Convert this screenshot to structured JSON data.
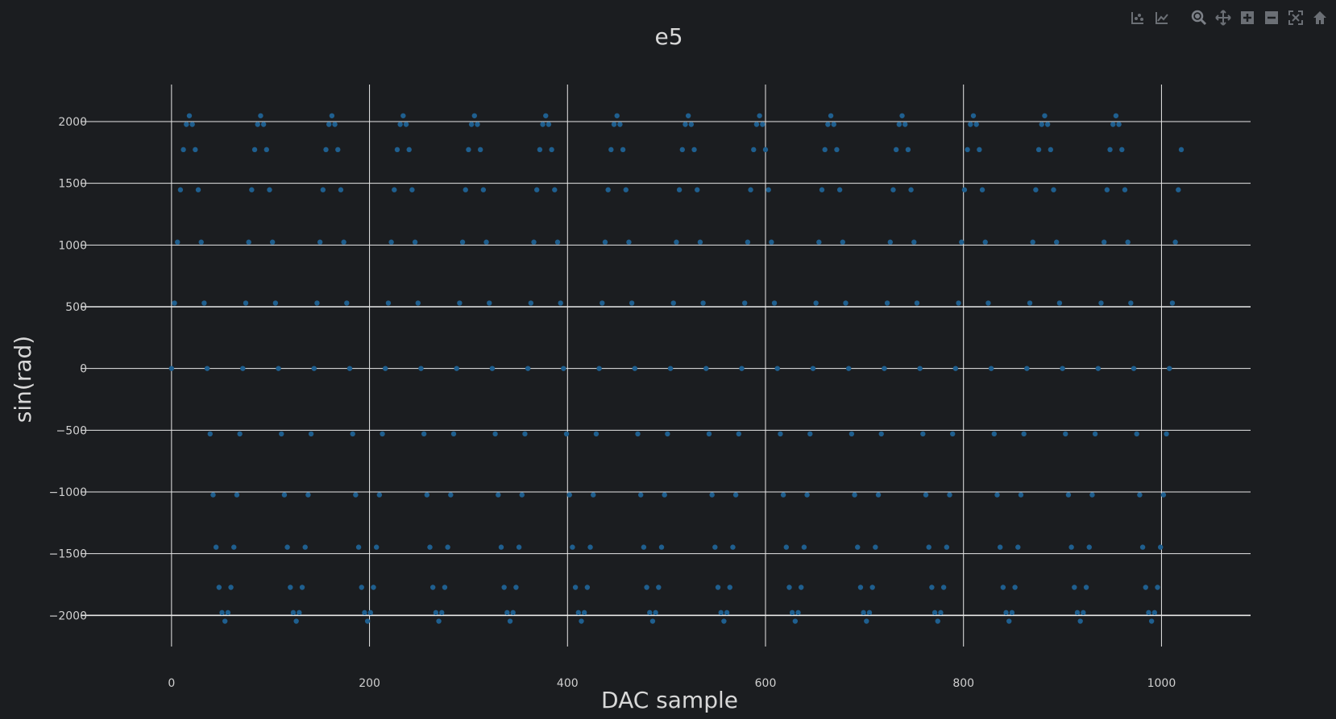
{
  "chart_data": {
    "type": "scatter",
    "title": "e5",
    "xlabel": "DAC sample",
    "ylabel": "sin(rad)",
    "xlim": [
      -100,
      1090
    ],
    "ylim": [
      -2200,
      2300
    ],
    "x_ticks": [
      0,
      200,
      400,
      600,
      800,
      1000
    ],
    "x_tick_labels": [
      "0",
      "200",
      "400",
      "600",
      "800",
      "1000"
    ],
    "y_ticks": [
      -2000,
      -1500,
      -1000,
      -500,
      0,
      500,
      1000,
      1500,
      2000
    ],
    "y_tick_labels": [
      "−2000",
      "−1500",
      "−1000",
      "−500",
      "0",
      "500",
      "1000",
      "1500",
      "2000"
    ],
    "grid": true,
    "legend": "none",
    "series": [
      {
        "marker_color": "#1f5f8f",
        "sample_step": 3,
        "period_samples": 72,
        "amplitude": 2047,
        "x_start": 0,
        "x_end": 1022,
        "formula": "2047*sin(2*pi*x/72)"
      }
    ]
  },
  "colors": {
    "background": "#1b1d20",
    "grid": "#e8e8e8",
    "text": "#d8d8d8",
    "tick_text": "#cfcfcf",
    "modebar_icon": "#6b6f75"
  },
  "modebar": [
    {
      "name": "compare-data-icon",
      "label": "Compare data on hover"
    },
    {
      "name": "closest-data-icon",
      "label": "Show closest data on hover"
    },
    {
      "name": "zoom-icon",
      "label": "Zoom"
    },
    {
      "name": "pan-icon",
      "label": "Pan"
    },
    {
      "name": "zoom-in-icon",
      "label": "Zoom in"
    },
    {
      "name": "zoom-out-icon",
      "label": "Zoom out"
    },
    {
      "name": "autoscale-icon",
      "label": "Autoscale"
    },
    {
      "name": "reset-axes-icon",
      "label": "Reset axes"
    }
  ]
}
